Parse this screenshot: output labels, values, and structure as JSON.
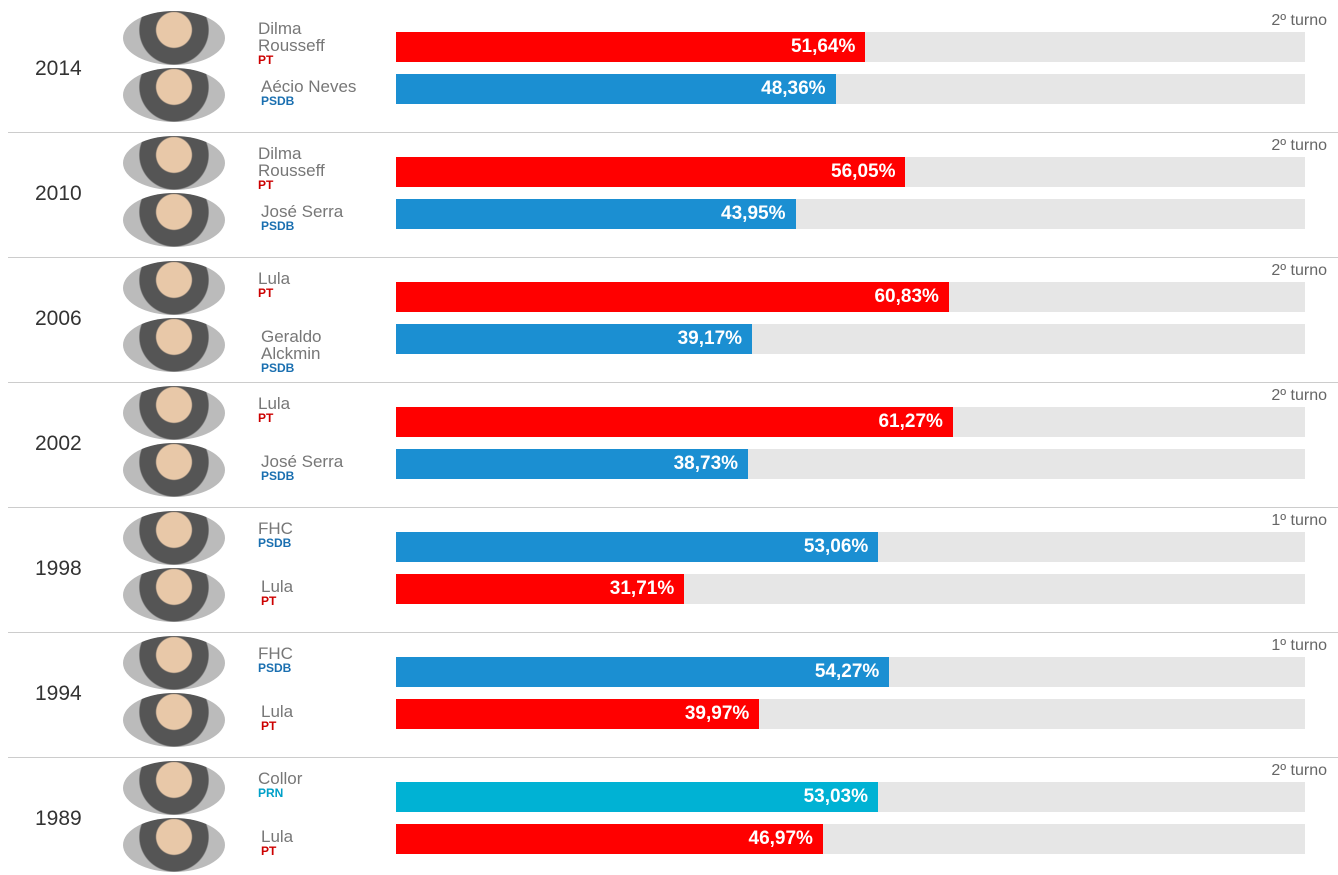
{
  "chart_data": {
    "type": "bar",
    "xlim": [
      0,
      100
    ],
    "groups": [
      {
        "year": "2014",
        "round": "2º turno",
        "candidates": [
          {
            "name": "Dilma Rousseff",
            "party": "PT",
            "color": "#ff0000",
            "party_color": "#cc0000",
            "value": 51.64,
            "value_label": "51,64%"
          },
          {
            "name": "Aécio Neves",
            "party": "PSDB",
            "color": "#1b8fd2",
            "party_color": "#1a6fb0",
            "value": 48.36,
            "value_label": "48,36%"
          }
        ]
      },
      {
        "year": "2010",
        "round": "2º turno",
        "candidates": [
          {
            "name": "Dilma Rousseff",
            "party": "PT",
            "color": "#ff0000",
            "party_color": "#cc0000",
            "value": 56.05,
            "value_label": "56,05%"
          },
          {
            "name": "José Serra",
            "party": "PSDB",
            "color": "#1b8fd2",
            "party_color": "#1a6fb0",
            "value": 43.95,
            "value_label": "43,95%"
          }
        ]
      },
      {
        "year": "2006",
        "round": "2º turno",
        "candidates": [
          {
            "name": "Lula",
            "party": "PT",
            "color": "#ff0000",
            "party_color": "#cc0000",
            "value": 60.83,
            "value_label": "60,83%"
          },
          {
            "name": "Geraldo Alckmin",
            "party": "PSDB",
            "color": "#1b8fd2",
            "party_color": "#1a6fb0",
            "value": 39.17,
            "value_label": "39,17%"
          }
        ]
      },
      {
        "year": "2002",
        "round": "2º turno",
        "candidates": [
          {
            "name": "Lula",
            "party": "PT",
            "color": "#ff0000",
            "party_color": "#cc0000",
            "value": 61.27,
            "value_label": "61,27%"
          },
          {
            "name": "José Serra",
            "party": "PSDB",
            "color": "#1b8fd2",
            "party_color": "#1a6fb0",
            "value": 38.73,
            "value_label": "38,73%"
          }
        ]
      },
      {
        "year": "1998",
        "round": "1º turno",
        "candidates": [
          {
            "name": "FHC",
            "party": "PSDB",
            "color": "#1b8fd2",
            "party_color": "#1a6fb0",
            "value": 53.06,
            "value_label": "53,06%"
          },
          {
            "name": "Lula",
            "party": "PT",
            "color": "#ff0000",
            "party_color": "#cc0000",
            "value": 31.71,
            "value_label": "31,71%"
          }
        ]
      },
      {
        "year": "1994",
        "round": "1º turno",
        "candidates": [
          {
            "name": "FHC",
            "party": "PSDB",
            "color": "#1b8fd2",
            "party_color": "#1a6fb0",
            "value": 54.27,
            "value_label": "54,27%"
          },
          {
            "name": "Lula",
            "party": "PT",
            "color": "#ff0000",
            "party_color": "#cc0000",
            "value": 39.97,
            "value_label": "39,97%"
          }
        ]
      },
      {
        "year": "1989",
        "round": "2º turno",
        "candidates": [
          {
            "name": "Collor",
            "party": "PRN",
            "color": "#00b2d4",
            "party_color": "#00a0c8",
            "value": 53.03,
            "value_label": "53,03%"
          },
          {
            "name": "Lula",
            "party": "PT",
            "color": "#ff0000",
            "party_color": "#cc0000",
            "value": 46.97,
            "value_label": "46,97%"
          }
        ]
      }
    ]
  }
}
